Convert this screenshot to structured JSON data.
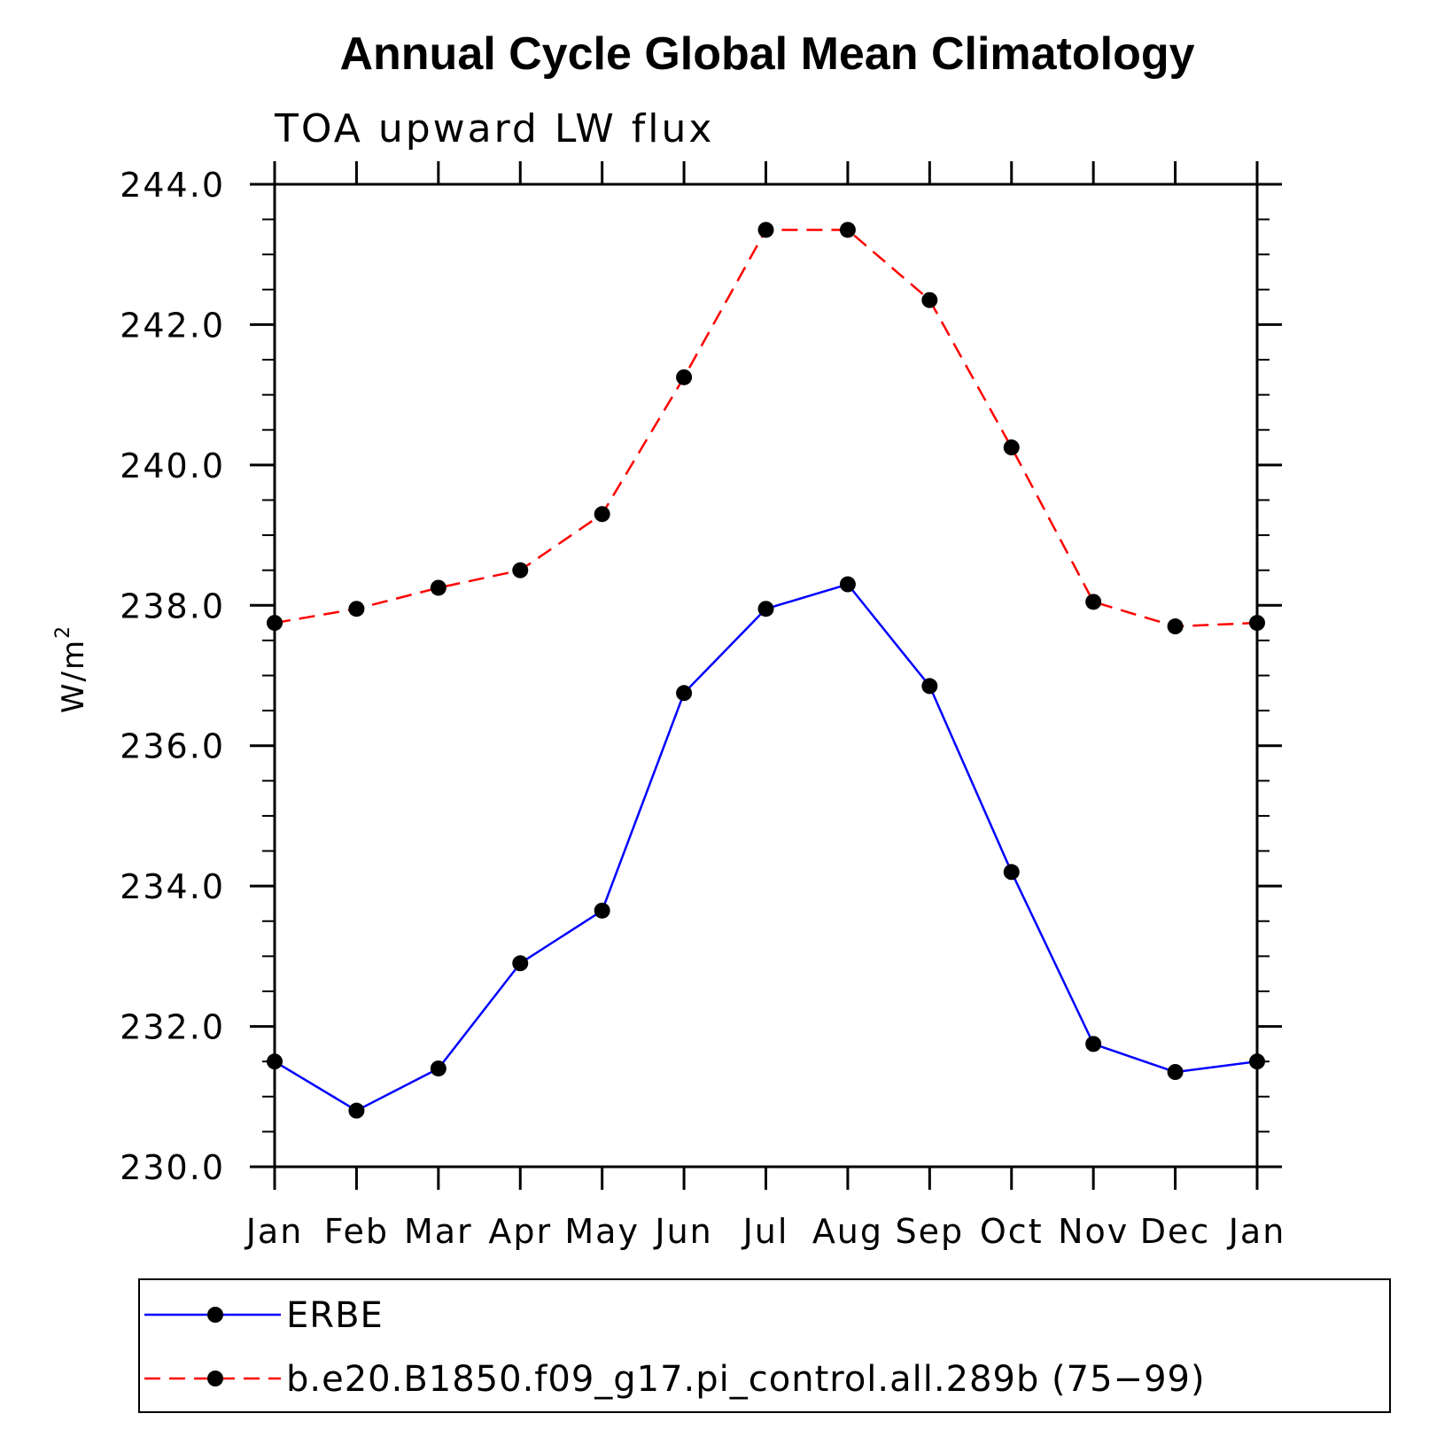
{
  "chart_data": {
    "type": "line",
    "title": "Annual Cycle Global Mean Climatology",
    "subtitle": "TOA upward LW flux",
    "ylabel": "W/m",
    "ylabel_superscript": "2",
    "ylim": [
      230.0,
      244.0
    ],
    "yticks": [
      "230.0",
      "232.0",
      "234.0",
      "236.0",
      "238.0",
      "240.0",
      "242.0",
      "244.0"
    ],
    "categories": [
      "Jan",
      "Feb",
      "Mar",
      "Apr",
      "May",
      "Jun",
      "Jul",
      "Aug",
      "Sep",
      "Oct",
      "Nov",
      "Dec",
      "Jan"
    ],
    "grid": false,
    "legend_placement": "bottom",
    "series": [
      {
        "name": "ERBE",
        "color": "#0000ff",
        "dash": "solid",
        "values": [
          231.5,
          230.8,
          231.4,
          232.9,
          233.65,
          236.75,
          237.95,
          238.3,
          236.85,
          234.2,
          231.75,
          231.35,
          231.5
        ]
      },
      {
        "name": "b.e20.B1850.f09_g17.pi_control.all.289b (75−99)",
        "color": "#ff0000",
        "dash": "dashed",
        "values": [
          237.75,
          237.95,
          238.25,
          238.5,
          239.3,
          241.25,
          243.35,
          243.35,
          242.35,
          240.25,
          238.05,
          237.7,
          237.75
        ]
      }
    ]
  }
}
